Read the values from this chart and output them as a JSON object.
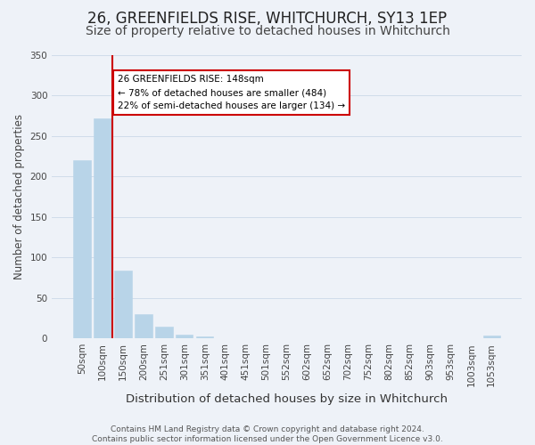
{
  "title": "26, GREENFIELDS RISE, WHITCHURCH, SY13 1EP",
  "subtitle": "Size of property relative to detached houses in Whitchurch",
  "xlabel": "Distribution of detached houses by size in Whitchurch",
  "ylabel": "Number of detached properties",
  "bar_values": [
    220,
    271,
    84,
    30,
    14,
    5,
    2,
    0,
    0,
    0,
    0,
    0,
    0,
    0,
    0,
    0,
    0,
    0,
    0,
    0,
    3
  ],
  "bar_labels": [
    "50sqm",
    "100sqm",
    "150sqm",
    "200sqm",
    "251sqm",
    "301sqm",
    "351sqm",
    "401sqm",
    "451sqm",
    "501sqm",
    "552sqm",
    "602sqm",
    "652sqm",
    "702sqm",
    "752sqm",
    "802sqm",
    "852sqm",
    "903sqm",
    "953sqm",
    "1003sqm",
    "1053sqm"
  ],
  "bar_color": "#b8d4e8",
  "bar_edge_color": "#b8d4e8",
  "grid_color": "#d0dcea",
  "property_line_col": "#cc0000",
  "property_bar_index": 2,
  "annotation_text": "26 GREENFIELDS RISE: 148sqm\n← 78% of detached houses are smaller (484)\n22% of semi-detached houses are larger (134) →",
  "annotation_box_color": "#ffffff",
  "annotation_box_edge": "#cc0000",
  "ylim": [
    0,
    350
  ],
  "yticks": [
    0,
    50,
    100,
    150,
    200,
    250,
    300,
    350
  ],
  "footer_line1": "Contains HM Land Registry data © Crown copyright and database right 2024.",
  "footer_line2": "Contains public sector information licensed under the Open Government Licence v3.0.",
  "bg_color": "#eef2f8",
  "title_fontsize": 12,
  "subtitle_fontsize": 10,
  "xlabel_fontsize": 9.5,
  "ylabel_fontsize": 8.5,
  "tick_fontsize": 7.5,
  "footer_fontsize": 6.5
}
